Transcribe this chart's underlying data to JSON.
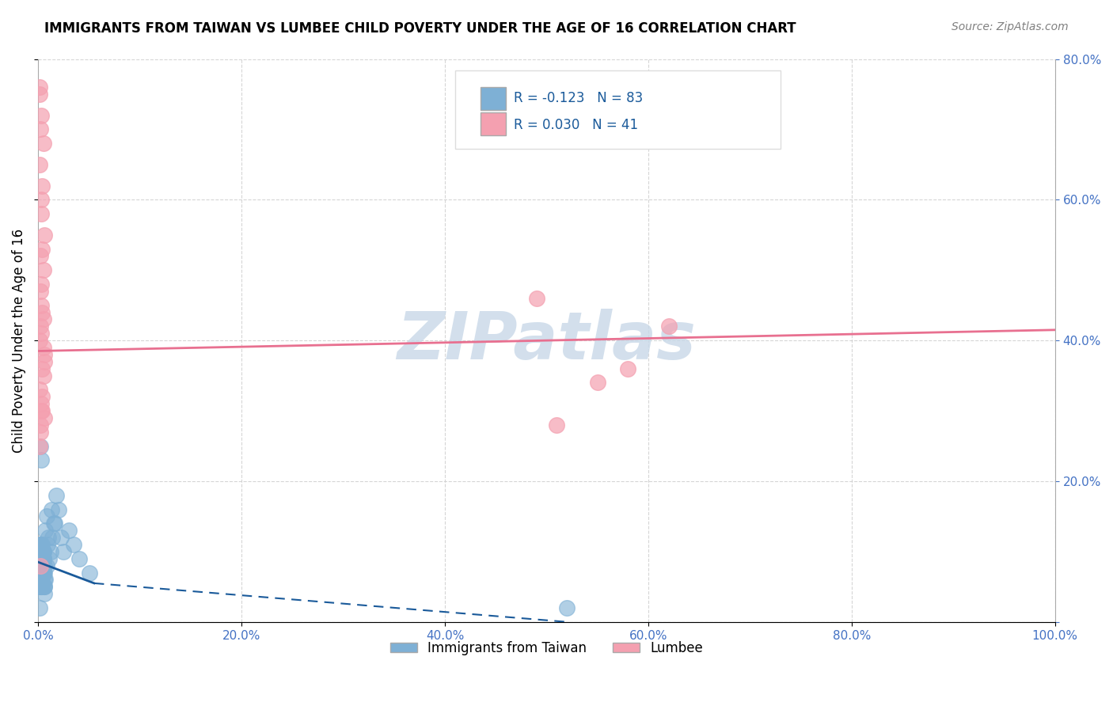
{
  "title": "IMMIGRANTS FROM TAIWAN VS LUMBEE CHILD POVERTY UNDER THE AGE OF 16 CORRELATION CHART",
  "source": "Source: ZipAtlas.com",
  "xlabel": "",
  "ylabel": "Child Poverty Under the Age of 16",
  "xlim": [
    0.0,
    1.0
  ],
  "ylim": [
    0.0,
    0.8
  ],
  "xticks": [
    0.0,
    0.2,
    0.4,
    0.6,
    0.8,
    1.0
  ],
  "yticks": [
    0.0,
    0.2,
    0.4,
    0.6,
    0.8
  ],
  "xtick_labels": [
    "0.0%",
    "20.0%",
    "40.0%",
    "60.0%",
    "80.0%",
    "100.0%"
  ],
  "ytick_labels": [
    "",
    "20.0%",
    "40.0%",
    "60.0%",
    "80.0%"
  ],
  "legend_r_blue": "R = -0.123",
  "legend_n_blue": "N = 83",
  "legend_r_pink": "R = 0.030",
  "legend_n_pink": "N = 41",
  "blue_color": "#7EB0D5",
  "pink_color": "#F4A0B0",
  "blue_line_color": "#1A5A9A",
  "pink_line_color": "#E87090",
  "watermark": "ZIPatlas",
  "watermark_color": "#C8D8E8",
  "taiwan_x": [
    0.002,
    0.003,
    0.001,
    0.005,
    0.004,
    0.003,
    0.006,
    0.002,
    0.001,
    0.004,
    0.003,
    0.005,
    0.002,
    0.007,
    0.003,
    0.004,
    0.001,
    0.006,
    0.002,
    0.003,
    0.004,
    0.005,
    0.003,
    0.002,
    0.004,
    0.001,
    0.003,
    0.005,
    0.002,
    0.006,
    0.003,
    0.004,
    0.002,
    0.001,
    0.005,
    0.003,
    0.004,
    0.006,
    0.002,
    0.003,
    0.001,
    0.004,
    0.003,
    0.005,
    0.002,
    0.006,
    0.003,
    0.004,
    0.001,
    0.002,
    0.005,
    0.003,
    0.004,
    0.002,
    0.001,
    0.006,
    0.003,
    0.004,
    0.005,
    0.002,
    0.01,
    0.008,
    0.012,
    0.015,
    0.009,
    0.007,
    0.011,
    0.014,
    0.013,
    0.008,
    0.018,
    0.016,
    0.022,
    0.02,
    0.025,
    0.03,
    0.035,
    0.04,
    0.05,
    0.52,
    0.002,
    0.003,
    0.001
  ],
  "taiwan_y": [
    0.08,
    0.06,
    0.05,
    0.1,
    0.07,
    0.09,
    0.04,
    0.11,
    0.06,
    0.08,
    0.07,
    0.05,
    0.09,
    0.06,
    0.1,
    0.08,
    0.07,
    0.05,
    0.11,
    0.06,
    0.08,
    0.09,
    0.07,
    0.06,
    0.1,
    0.05,
    0.08,
    0.07,
    0.09,
    0.06,
    0.11,
    0.08,
    0.07,
    0.05,
    0.09,
    0.06,
    0.1,
    0.08,
    0.07,
    0.05,
    0.11,
    0.06,
    0.08,
    0.07,
    0.09,
    0.05,
    0.1,
    0.08,
    0.06,
    0.07,
    0.09,
    0.05,
    0.11,
    0.08,
    0.06,
    0.07,
    0.09,
    0.05,
    0.1,
    0.08,
    0.12,
    0.15,
    0.1,
    0.14,
    0.11,
    0.13,
    0.09,
    0.12,
    0.16,
    0.08,
    0.18,
    0.14,
    0.12,
    0.16,
    0.1,
    0.13,
    0.11,
    0.09,
    0.07,
    0.02,
    0.25,
    0.23,
    0.02
  ],
  "lumbee_x": [
    0.001,
    0.002,
    0.003,
    0.005,
    0.004,
    0.006,
    0.002,
    0.003,
    0.001,
    0.004,
    0.003,
    0.005,
    0.002,
    0.006,
    0.003,
    0.004,
    0.001,
    0.002,
    0.005,
    0.003,
    0.004,
    0.001,
    0.006,
    0.003,
    0.004,
    0.002,
    0.005,
    0.001,
    0.003,
    0.004,
    0.002,
    0.006,
    0.003,
    0.001,
    0.005,
    0.49,
    0.62,
    0.55,
    0.58,
    0.51,
    0.002
  ],
  "lumbee_y": [
    0.25,
    0.28,
    0.3,
    0.35,
    0.32,
    0.38,
    0.42,
    0.45,
    0.4,
    0.36,
    0.48,
    0.5,
    0.52,
    0.55,
    0.6,
    0.62,
    0.65,
    0.7,
    0.68,
    0.72,
    0.3,
    0.33,
    0.37,
    0.41,
    0.44,
    0.47,
    0.43,
    0.75,
    0.58,
    0.53,
    0.27,
    0.29,
    0.31,
    0.76,
    0.39,
    0.46,
    0.42,
    0.34,
    0.36,
    0.28,
    0.08
  ]
}
